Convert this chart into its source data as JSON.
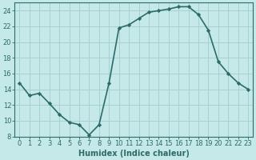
{
  "x": [
    0,
    1,
    2,
    3,
    4,
    5,
    6,
    7,
    8,
    9,
    10,
    11,
    12,
    13,
    14,
    15,
    16,
    17,
    18,
    19,
    20,
    21,
    22,
    23
  ],
  "y": [
    14.8,
    13.2,
    13.5,
    12.2,
    10.8,
    9.8,
    9.5,
    8.2,
    9.5,
    14.8,
    21.8,
    22.2,
    23.0,
    23.8,
    24.0,
    24.2,
    24.5,
    24.5,
    23.5,
    21.5,
    17.5,
    16.0,
    14.8,
    14.0
  ],
  "line_color": "#2d6b6b",
  "bg_color": "#c5e8e8",
  "grid_color": "#a8d0d0",
  "xlabel": "Humidex (Indice chaleur)",
  "xlabel_fontsize": 7,
  "tick_fontsize": 6,
  "ylim": [
    8,
    25
  ],
  "yticks": [
    8,
    10,
    12,
    14,
    16,
    18,
    20,
    22,
    24
  ],
  "xlim": [
    -0.5,
    23.5
  ],
  "marker": "D",
  "marker_size": 2.2,
  "linewidth": 1.2
}
